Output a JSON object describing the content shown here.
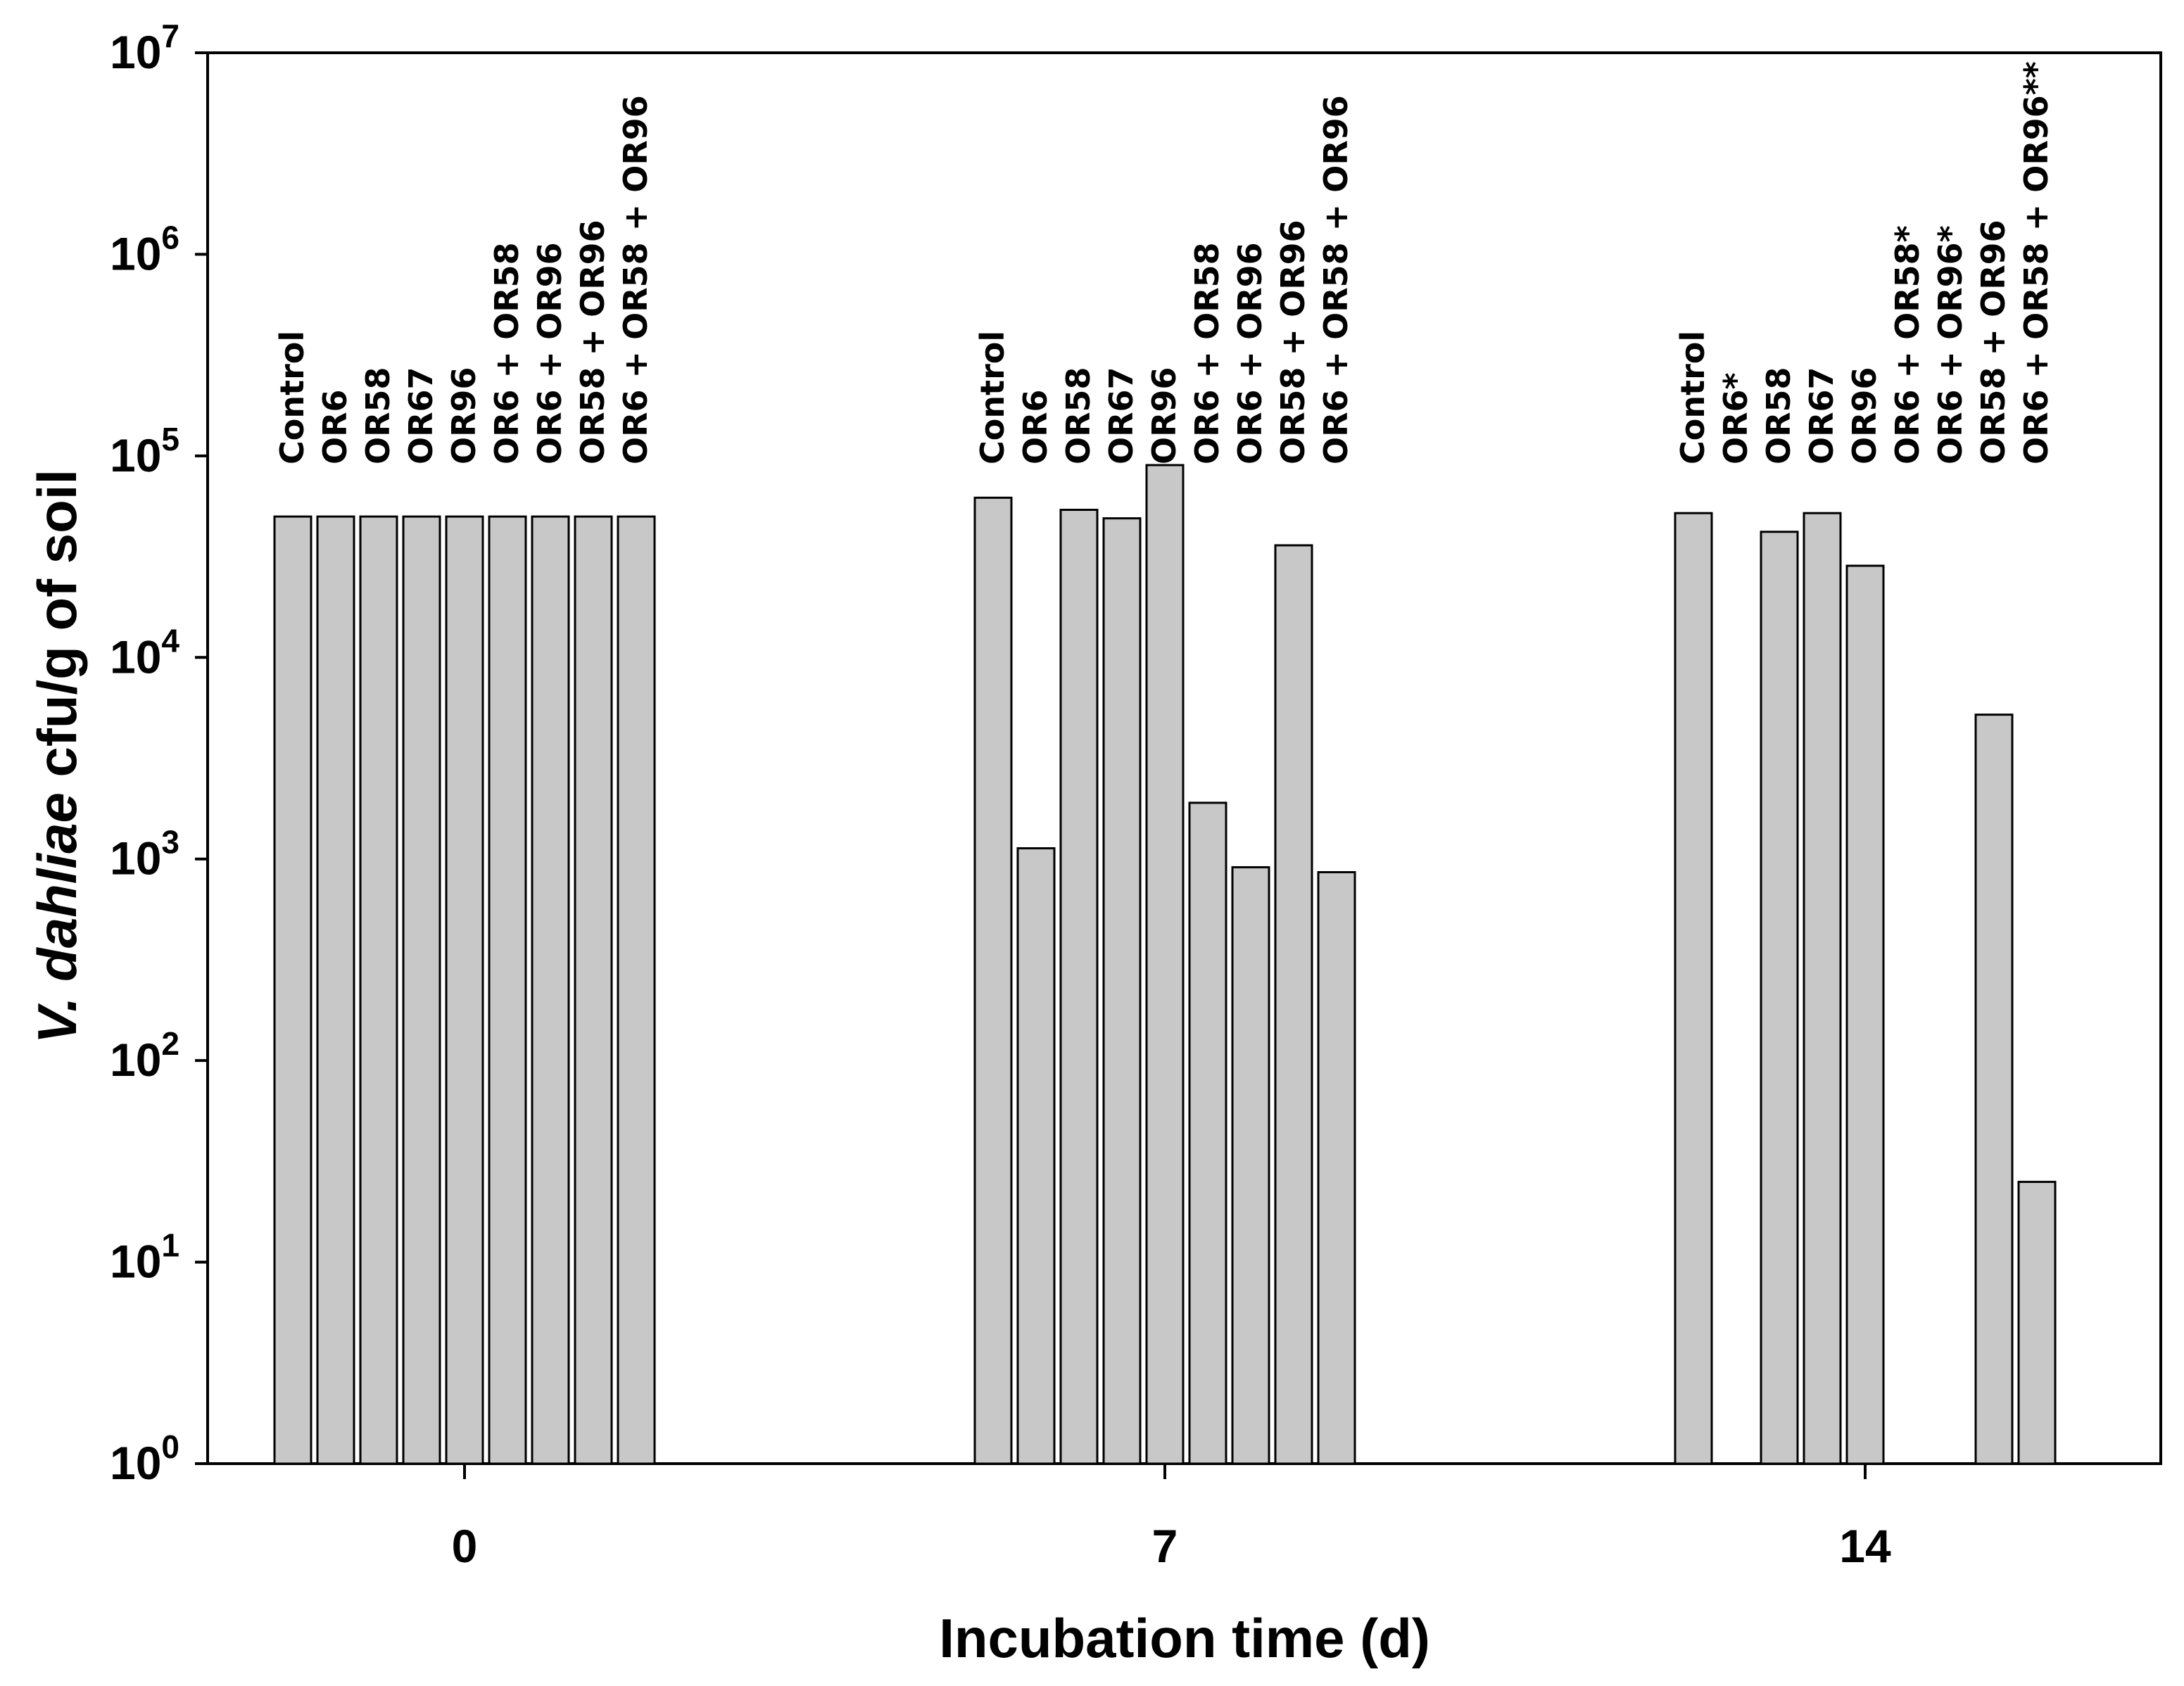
{
  "chart_data": {
    "type": "bar",
    "scale": "log",
    "xlabel": "Incubation time (d)",
    "ylabel": {
      "italic": "V. dahliae",
      "rest": " cfu/g of soil"
    },
    "ylim": [
      1,
      10000000
    ],
    "yticks": [
      {
        "base": "10",
        "exp": "0"
      },
      {
        "base": "10",
        "exp": "1"
      },
      {
        "base": "10",
        "exp": "2"
      },
      {
        "base": "10",
        "exp": "3"
      },
      {
        "base": "10",
        "exp": "4"
      },
      {
        "base": "10",
        "exp": "5"
      },
      {
        "base": "10",
        "exp": "6"
      },
      {
        "base": "10",
        "exp": "7"
      }
    ],
    "categories": [
      "0",
      "7",
      "14"
    ],
    "groups": [
      {
        "time": "0",
        "bars": [
          {
            "label": "Control",
            "value": 50000
          },
          {
            "label": "OR6",
            "value": 50000
          },
          {
            "label": "OR58",
            "value": 50000
          },
          {
            "label": "OR67",
            "value": 50000
          },
          {
            "label": "OR96",
            "value": 50000
          },
          {
            "label": "OR6 + OR58",
            "value": 50000
          },
          {
            "label": "OR6 + OR96",
            "value": 50000
          },
          {
            "label": "OR58 + OR96",
            "value": 50000
          },
          {
            "label": "OR6 + OR58 + OR96",
            "value": 50000
          }
        ]
      },
      {
        "time": "7",
        "bars": [
          {
            "label": "Control",
            "value": 62000
          },
          {
            "label": "OR6",
            "value": 1130
          },
          {
            "label": "OR58",
            "value": 54000
          },
          {
            "label": "OR67",
            "value": 49000
          },
          {
            "label": "OR96",
            "value": 90000
          },
          {
            "label": "OR6 + OR58",
            "value": 1900
          },
          {
            "label": "OR6 + OR96",
            "value": 910
          },
          {
            "label": "OR58 + OR96",
            "value": 36000
          },
          {
            "label": "OR6 + OR58 + OR96",
            "value": 860
          }
        ]
      },
      {
        "time": "14",
        "bars": [
          {
            "label": "Control",
            "value": 52000
          },
          {
            "label": "OR6*",
            "value": 1
          },
          {
            "label": "OR58",
            "value": 42000
          },
          {
            "label": "OR67",
            "value": 52000
          },
          {
            "label": "OR96",
            "value": 28500
          },
          {
            "label": "OR6 + OR58*",
            "value": 1
          },
          {
            "label": "OR6 + OR96*",
            "value": 1
          },
          {
            "label": "OR58 + OR96",
            "value": 5200
          },
          {
            "label": "OR6 + OR58 + OR96**",
            "value": 25
          }
        ]
      }
    ],
    "colors": {
      "bar_fill": "#c8c8c8",
      "bar_stroke": "#000000",
      "axis": "#000000",
      "ylabel": "#3a1e14"
    }
  }
}
